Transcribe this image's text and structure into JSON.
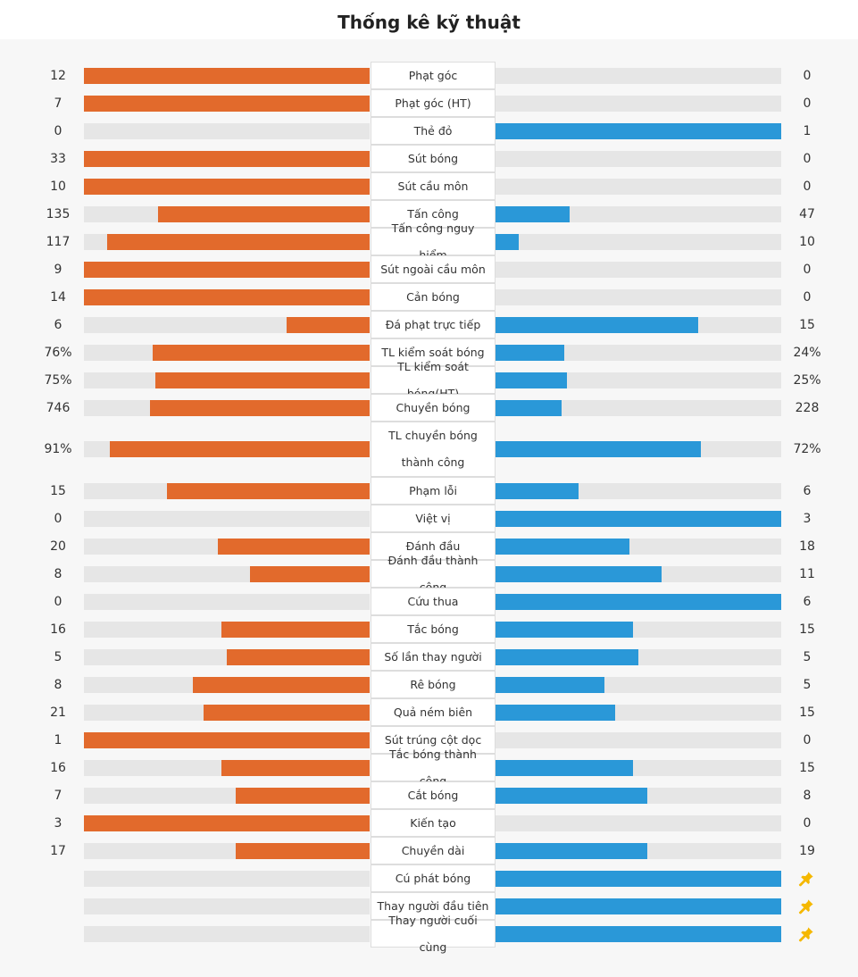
{
  "title": "Thống kê kỹ thuật",
  "colors": {
    "home": "#e26a2c",
    "away": "#2a98d8",
    "track": "#e6e6e6",
    "pin": "#f5b800"
  },
  "stats": [
    {
      "label": "Phạt góc",
      "home": "12",
      "away": "0",
      "home_pct": 100,
      "away_pct": 0
    },
    {
      "label": "Phạt góc (HT)",
      "home": "7",
      "away": "0",
      "home_pct": 100,
      "away_pct": 0
    },
    {
      "label": "Thẻ đỏ",
      "home": "0",
      "away": "1",
      "home_pct": 0,
      "away_pct": 100
    },
    {
      "label": "Sút bóng",
      "home": "33",
      "away": "0",
      "home_pct": 100,
      "away_pct": 0
    },
    {
      "label": "Sút cầu môn",
      "home": "10",
      "away": "0",
      "home_pct": 100,
      "away_pct": 0
    },
    {
      "label": "Tấn công",
      "home": "135",
      "away": "47",
      "home_pct": 74,
      "away_pct": 26
    },
    {
      "label": "Tấn công nguy hiểm",
      "home": "117",
      "away": "10",
      "home_pct": 92,
      "away_pct": 8
    },
    {
      "label": "Sút ngoài cầu môn",
      "home": "9",
      "away": "0",
      "home_pct": 100,
      "away_pct": 0
    },
    {
      "label": "Cản bóng",
      "home": "14",
      "away": "0",
      "home_pct": 100,
      "away_pct": 0
    },
    {
      "label": "Đá phạt trực tiếp",
      "home": "6",
      "away": "15",
      "home_pct": 29,
      "away_pct": 71
    },
    {
      "label": "TL kiểm soát bóng",
      "home": "76%",
      "away": "24%",
      "home_pct": 76,
      "away_pct": 24
    },
    {
      "label": "TL kiểm soát bóng(HT)",
      "home": "75%",
      "away": "25%",
      "home_pct": 75,
      "away_pct": 25
    },
    {
      "label": "Chuyền bóng",
      "home": "746",
      "away": "228",
      "home_pct": 77,
      "away_pct": 23
    },
    {
      "label": "TL chuyền bóng thành công",
      "home": "91%",
      "away": "72%",
      "home_pct": 91,
      "away_pct": 72
    },
    {
      "label": "Phạm lỗi",
      "home": "15",
      "away": "6",
      "home_pct": 71,
      "away_pct": 29
    },
    {
      "label": "Việt vị",
      "home": "0",
      "away": "3",
      "home_pct": 0,
      "away_pct": 100
    },
    {
      "label": "Đánh đầu",
      "home": "20",
      "away": "18",
      "home_pct": 53,
      "away_pct": 47
    },
    {
      "label": "Đánh đầu thành công",
      "home": "8",
      "away": "11",
      "home_pct": 42,
      "away_pct": 58
    },
    {
      "label": "Cứu thua",
      "home": "0",
      "away": "6",
      "home_pct": 0,
      "away_pct": 100
    },
    {
      "label": "Tắc bóng",
      "home": "16",
      "away": "15",
      "home_pct": 52,
      "away_pct": 48
    },
    {
      "label": "Số lần thay người",
      "home": "5",
      "away": "5",
      "home_pct": 50,
      "away_pct": 50
    },
    {
      "label": "Rê bóng",
      "home": "8",
      "away": "5",
      "home_pct": 62,
      "away_pct": 38
    },
    {
      "label": "Quả ném biên",
      "home": "21",
      "away": "15",
      "home_pct": 58,
      "away_pct": 42
    },
    {
      "label": "Sút trúng cột dọc",
      "home": "1",
      "away": "0",
      "home_pct": 100,
      "away_pct": 0
    },
    {
      "label": "Tắc bóng thành công",
      "home": "16",
      "away": "15",
      "home_pct": 52,
      "away_pct": 48
    },
    {
      "label": "Cắt bóng",
      "home": "7",
      "away": "8",
      "home_pct": 47,
      "away_pct": 53
    },
    {
      "label": "Kiến tạo",
      "home": "3",
      "away": "0",
      "home_pct": 100,
      "away_pct": 0
    },
    {
      "label": "Chuyền dài",
      "home": "17",
      "away": "19",
      "home_pct": 47,
      "away_pct": 53
    },
    {
      "label": "Cú phát bóng",
      "home": "",
      "away": "",
      "away_icon": "pin-icon",
      "home_pct": 0,
      "away_pct": 100
    },
    {
      "label": "Thay người đầu tiên",
      "home": "",
      "away": "",
      "away_icon": "pin-icon",
      "home_pct": 0,
      "away_pct": 100
    },
    {
      "label": "Thay người cuối cùng",
      "home": "",
      "away": "",
      "away_icon": "pin-icon",
      "home_pct": 0,
      "away_pct": 100
    }
  ]
}
